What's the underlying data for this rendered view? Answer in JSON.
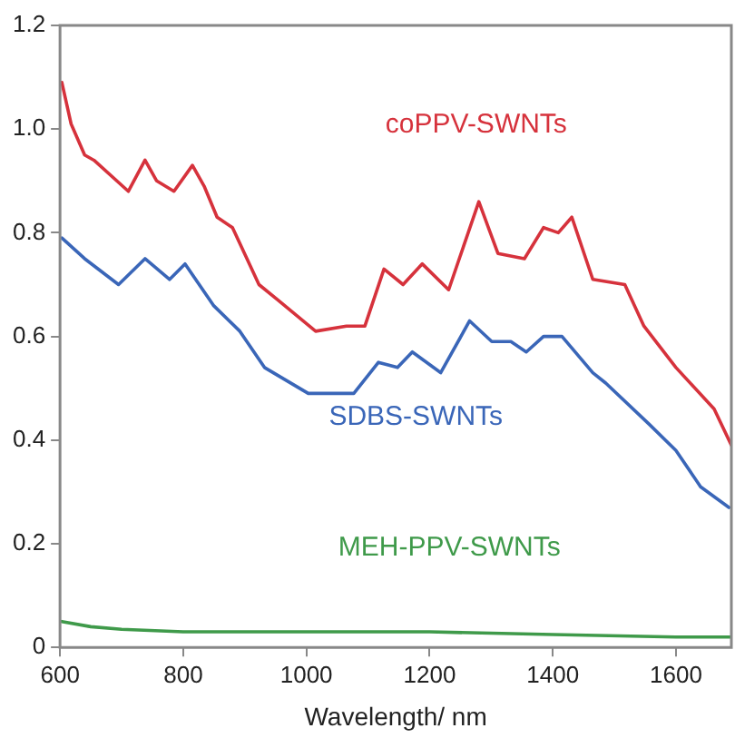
{
  "chart_data": {
    "type": "line",
    "xlabel": "Wavelength/ nm",
    "xlim": [
      600,
      1690
    ],
    "xticks": [
      600,
      800,
      1000,
      1200,
      1400,
      1600
    ],
    "ylim": [
      0,
      1.2
    ],
    "yticks": [
      0,
      {
        "value": 0.2,
        "label": "0.2"
      },
      {
        "value": 0.4,
        "label": "0.4"
      },
      {
        "value": 0.6,
        "label": "0.6"
      },
      {
        "value": 0.8,
        "label": "0.8"
      },
      {
        "value": 1,
        "label": "1.0"
      },
      {
        "value": 1.2,
        "label": "1.2"
      }
    ],
    "grid": false,
    "legend": false,
    "marker": "none",
    "line_style": "solid",
    "series": [
      {
        "name": "coPPV-SWNTs",
        "color": "#d6323c",
        "x": [
          603,
          618,
          640,
          655,
          711,
          738,
          757,
          785,
          815,
          834,
          855,
          880,
          923,
          954,
          1015,
          1065,
          1095,
          1126,
          1157,
          1188,
          1231,
          1280,
          1311,
          1354,
          1385,
          1409,
          1431,
          1465,
          1517,
          1548,
          1600,
          1662,
          1690
        ],
        "values": [
          1.09,
          1.01,
          0.95,
          0.94,
          0.88,
          0.94,
          0.9,
          0.88,
          0.93,
          0.89,
          0.83,
          0.81,
          0.7,
          0.67,
          0.61,
          0.62,
          0.62,
          0.73,
          0.7,
          0.74,
          0.69,
          0.86,
          0.76,
          0.75,
          0.81,
          0.8,
          0.83,
          0.71,
          0.7,
          0.62,
          0.54,
          0.46,
          0.39
        ]
      },
      {
        "name": "SDBS-SWNTs",
        "color": "#3a66b8",
        "x": [
          603,
          640,
          695,
          738,
          778,
          803,
          849,
          892,
          932,
          1003,
          1077,
          1117,
          1148,
          1172,
          1218,
          1265,
          1301,
          1332,
          1357,
          1385,
          1415,
          1465,
          1486,
          1557,
          1600,
          1640,
          1686
        ],
        "values": [
          0.79,
          0.75,
          0.7,
          0.75,
          0.71,
          0.74,
          0.66,
          0.61,
          0.54,
          0.49,
          0.49,
          0.55,
          0.54,
          0.57,
          0.53,
          0.63,
          0.59,
          0.59,
          0.57,
          0.6,
          0.6,
          0.53,
          0.51,
          0.43,
          0.38,
          0.31,
          0.27
        ]
      },
      {
        "name": "MEH-PPV-SWNTs",
        "color": "#3f9a4a",
        "x": [
          603,
          650,
          700,
          800,
          1000,
          1200,
          1400,
          1600,
          1690
        ],
        "values": [
          0.05,
          0.04,
          0.035,
          0.03,
          0.03,
          0.03,
          0.025,
          0.02,
          0.02
        ]
      }
    ]
  }
}
